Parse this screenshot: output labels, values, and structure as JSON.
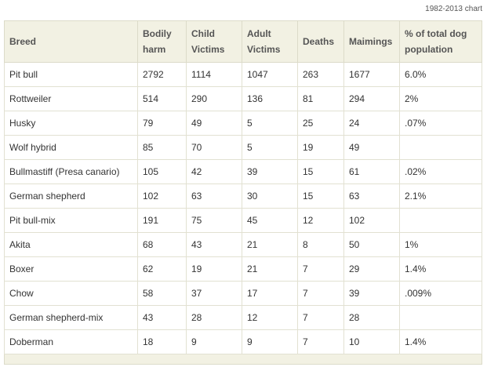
{
  "caption": "1982-2013 chart",
  "table": {
    "headers": [
      [
        "Breed"
      ],
      [
        "Bodily",
        "harm"
      ],
      [
        "Child",
        "Victims"
      ],
      [
        "Adult",
        "Victims"
      ],
      [
        "Deaths"
      ],
      [
        "Maimings"
      ],
      [
        "% of total dog",
        "population"
      ]
    ],
    "rows": [
      [
        "Pit bull",
        "2792",
        "1114",
        "1047",
        "263",
        "1677",
        "6.0%"
      ],
      [
        "Rottweiler",
        "514",
        "290",
        "136",
        "81",
        "294",
        "2%"
      ],
      [
        "Husky",
        "79",
        "49",
        "5",
        "25",
        "24",
        ".07%"
      ],
      [
        "Wolf hybrid",
        "85",
        "70",
        "5",
        "19",
        "49",
        ""
      ],
      [
        "Bullmastiff (Presa canario)",
        "105",
        "42",
        "39",
        "15",
        "61",
        ".02%"
      ],
      [
        "German shepherd",
        "102",
        "63",
        "30",
        "15",
        "63",
        "2.1%"
      ],
      [
        "Pit bull-mix",
        "191",
        "75",
        "45",
        "12",
        "102",
        ""
      ],
      [
        "Akita",
        "68",
        "43",
        "21",
        "8",
        "50",
        "1%"
      ],
      [
        "Boxer",
        "62",
        "19",
        "21",
        "7",
        "29",
        "1.4%"
      ],
      [
        "Chow",
        "58",
        "37",
        "17",
        "7",
        "39",
        ".009%"
      ],
      [
        "German shepherd-mix",
        "43",
        "28",
        "12",
        "7",
        "28",
        ""
      ],
      [
        "Doberman",
        "18",
        "9",
        "9",
        "7",
        "10",
        "1.4%"
      ]
    ]
  },
  "colors": {
    "header_bg": "#f2f1e3",
    "border": "#e2e1d2",
    "text": "#333333"
  }
}
